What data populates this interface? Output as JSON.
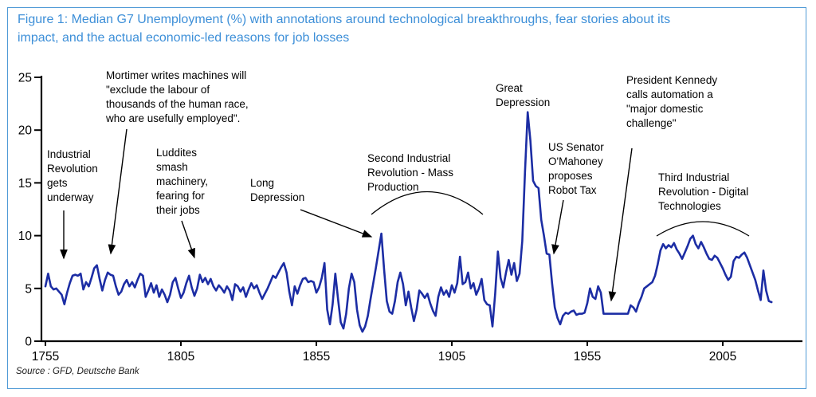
{
  "title": "Figure 1: Median G7 Unemployment (%) with annotations around technological breakthroughs, fear stories about its\nimpact, and the actual economic-led reasons for job losses",
  "source": "Source : GFD, Deutsche Bank",
  "colors": {
    "line_blue": "#1c2da4",
    "accent_blue": "#3d8fd8",
    "border_blue": "#4f9ad6",
    "axis_black": "#000000"
  },
  "annotations": [
    {
      "id": "industrial-revolution",
      "text": "Industrial\nRevolution\ngets\nunderway"
    },
    {
      "id": "mortimer-quote",
      "text": "Mortimer writes machines will\n\"exclude the labour of\nthousands of the human race,\nwho are usefully employed\"."
    },
    {
      "id": "luddites",
      "text": "Luddites\nsmash\nmachinery,\nfearing for\ntheir jobs"
    },
    {
      "id": "long-depression",
      "text": "Long\nDepression"
    },
    {
      "id": "second-industrial-revolution",
      "text": "Second Industrial\nRevolution - Mass\nProduction"
    },
    {
      "id": "great-depression",
      "text": "Great\nDepression"
    },
    {
      "id": "robot-tax",
      "text": "US Senator\nO'Mahoney\nproposes\nRobot Tax"
    },
    {
      "id": "kennedy-automation",
      "text": "President Kennedy\ncalls automation a\n\"major domestic\nchallenge\""
    },
    {
      "id": "third-industrial-revolution",
      "text": "Third Industrial\nRevolution - Digital\nTechnologies"
    }
  ],
  "chart_data": {
    "type": "line",
    "title": "Median G7 Unemployment (%)",
    "xlabel": "",
    "ylabel": "",
    "grid": false,
    "legend": "none",
    "x_ticks": [
      1755,
      1805,
      1855,
      1905,
      1955,
      2005
    ],
    "y_ticks": [
      0,
      5,
      10,
      15,
      20,
      25
    ],
    "x_range": [
      1755,
      2023
    ],
    "ylim": [
      0,
      25
    ],
    "series": [
      {
        "name": "Median G7 unemployment rate (%)",
        "start_year": 1755,
        "step_years": 1,
        "values": [
          5.2,
          6.4,
          5.2,
          4.9,
          5.0,
          4.7,
          4.4,
          3.5,
          4.6,
          5.5,
          6.2,
          6.3,
          6.2,
          6.4,
          4.9,
          5.6,
          5.2,
          6.0,
          6.9,
          7.2,
          5.9,
          4.8,
          5.8,
          6.5,
          6.3,
          6.2,
          5.2,
          4.4,
          4.7,
          5.4,
          5.8,
          5.2,
          5.6,
          5.1,
          5.8,
          6.4,
          6.2,
          4.2,
          4.8,
          5.5,
          4.6,
          5.3,
          4.2,
          4.9,
          4.4,
          3.7,
          4.4,
          5.6,
          6.0,
          5.0,
          4.1,
          4.6,
          5.5,
          6.2,
          5.1,
          4.3,
          5.0,
          6.3,
          5.6,
          6.0,
          5.4,
          5.9,
          5.2,
          4.8,
          5.3,
          5.0,
          4.6,
          5.2,
          4.8,
          3.9,
          5.4,
          5.2,
          4.7,
          5.1,
          4.2,
          4.9,
          5.5,
          5.0,
          5.3,
          4.6,
          4.0,
          4.5,
          5.0,
          5.6,
          6.2,
          6.0,
          6.5,
          7.0,
          7.4,
          6.5,
          4.7,
          3.4,
          5.2,
          4.5,
          5.3,
          5.9,
          6.0,
          5.6,
          5.7,
          5.6,
          4.6,
          5.1,
          6.0,
          7.4,
          3.0,
          1.6,
          3.5,
          6.4,
          4.0,
          1.8,
          1.2,
          2.6,
          5.0,
          6.4,
          5.6,
          3.0,
          1.5,
          0.9,
          1.4,
          2.4,
          4.0,
          5.5,
          7.0,
          8.6,
          10.2,
          6.8,
          3.8,
          2.8,
          2.6,
          3.8,
          5.6,
          6.5,
          5.4,
          3.4,
          4.7,
          3.2,
          1.9,
          3.0,
          4.8,
          4.5,
          4.1,
          4.5,
          3.6,
          2.9,
          2.4,
          4.2,
          5.1,
          4.4,
          4.8,
          4.2,
          5.3,
          4.6,
          5.5,
          8.0,
          5.4,
          5.6,
          6.5,
          5.0,
          5.5,
          4.4,
          5.0,
          5.9,
          3.9,
          3.5,
          3.4,
          1.4,
          4.5,
          8.5,
          6.0,
          5.1,
          6.5,
          7.7,
          6.3,
          7.4,
          5.7,
          6.4,
          9.5,
          16.0,
          21.7,
          19.0,
          15.2,
          14.7,
          14.5,
          11.5,
          10.0,
          8.3,
          8.2,
          5.5,
          3.2,
          2.2,
          1.6,
          2.4,
          2.7,
          2.6,
          2.8,
          2.9,
          2.5,
          2.6,
          2.6,
          2.7,
          3.6,
          5.0,
          4.2,
          4.0,
          5.2,
          4.6,
          2.6,
          2.6,
          2.6,
          2.6,
          2.6,
          2.6,
          2.6,
          2.6,
          2.6,
          2.6,
          3.4,
          3.2,
          2.8,
          3.6,
          4.2,
          5.0,
          5.2,
          5.4,
          5.6,
          6.2,
          7.3,
          8.6,
          9.2,
          8.8,
          9.1,
          8.9,
          9.3,
          8.7,
          8.3,
          7.8,
          8.4,
          9.0,
          9.7,
          10.0,
          9.2,
          8.8,
          9.4,
          8.9,
          8.3,
          7.8,
          7.7,
          8.1,
          7.9,
          7.4,
          6.9,
          6.3,
          5.8,
          6.1,
          7.6,
          8.0,
          7.9,
          8.2,
          8.4,
          7.9,
          7.2,
          6.5,
          5.8,
          4.8,
          3.9,
          6.7,
          4.8,
          3.8,
          3.7
        ]
      }
    ]
  }
}
